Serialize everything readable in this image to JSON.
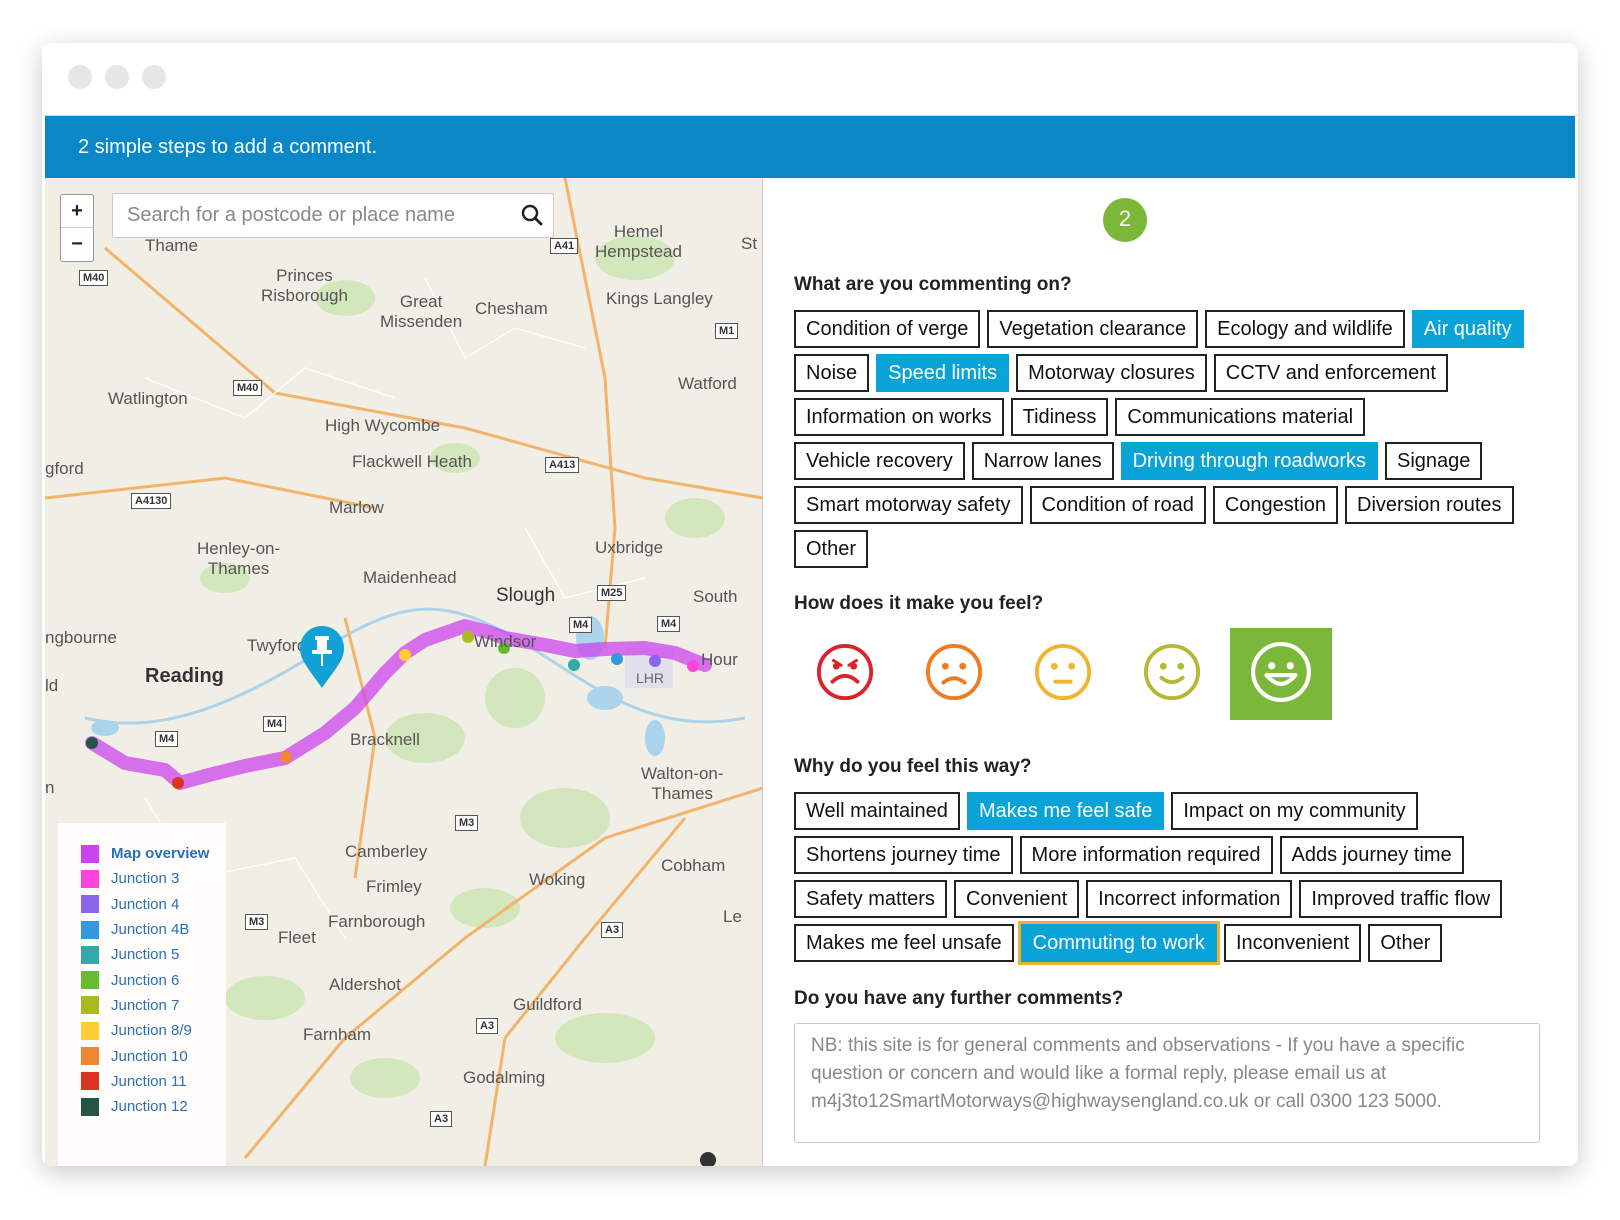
{
  "banner": {
    "text": "2 simple steps to add a comment."
  },
  "map": {
    "zoom_in": "+",
    "zoom_out": "−",
    "search_placeholder": "Search for a postcode or place name",
    "places": {
      "thame": "Thame",
      "princes_risborough": "Princes\nRisborough",
      "great_missenden": "Great\nMissenden",
      "chesham": "Chesham",
      "hemel_hempstead": "Hemel\nHempstead",
      "st": "St",
      "kings_langley": "Kings Langley",
      "watlington": "Watlington",
      "watford": "Watford",
      "high_wycombe": "High Wycombe",
      "flackwell_heath": "Flackwell Heath",
      "gford": "gford",
      "marlow": "Marlow",
      "henley": "Henley-on-\nThames",
      "uxbridge": "Uxbridge",
      "maidenhead": "Maidenhead",
      "slough": "Slough",
      "south": "South",
      "windsor": "Windsor",
      "twyford": "Twyford",
      "hour": "Hour",
      "lhr": "LHR",
      "ngbourne": "ngbourne",
      "reading": "Reading",
      "ld": "ld",
      "bracknell": "Bracknell",
      "walton": "Walton-on-\nThames",
      "camberley": "Camberley",
      "cobham": "Cobham",
      "frimley": "Frimley",
      "woking": "Woking",
      "farnborough": "Farnborough",
      "fleet": "Fleet",
      "le": "Le",
      "aldershot": "Aldershot",
      "guildford": "Guildford",
      "farnham": "Farnham",
      "godalming": "Godalming",
      "n": "n"
    },
    "roads": {
      "a41": "A41",
      "m40a": "M40",
      "m40b": "M40",
      "m1": "M1",
      "a413": "A413",
      "a4130": "A4130",
      "m25": "M25",
      "m4a": "M4",
      "m4b": "M4",
      "m4c": "M4",
      "m4d": "M4",
      "m3a": "M3",
      "m3b": "M3",
      "a3a": "A3",
      "a3b": "A3",
      "a3c": "A3"
    },
    "legend": [
      {
        "label": "Map overview",
        "color": "#cc44ee"
      },
      {
        "label": "Junction 3",
        "color": "#ff44dd"
      },
      {
        "label": "Junction 4",
        "color": "#8866ee"
      },
      {
        "label": "Junction 4B",
        "color": "#3399dd"
      },
      {
        "label": "Junction 5",
        "color": "#33aaaa"
      },
      {
        "label": "Junction 6",
        "color": "#66bb33"
      },
      {
        "label": "Junction 7",
        "color": "#aabb22"
      },
      {
        "label": "Junction 8/9",
        "color": "#ffcc33"
      },
      {
        "label": "Junction 10",
        "color": "#ee8833"
      },
      {
        "label": "Junction 11",
        "color": "#dd3322"
      },
      {
        "label": "Junction 12",
        "color": "#225544"
      }
    ]
  },
  "panel": {
    "step_number": "2",
    "q1": "What are you commenting on?",
    "topics": [
      [
        "Condition of verge",
        "Vegetation clearance",
        "Ecology and wildlife",
        "Air quality"
      ],
      [
        "Noise",
        "Speed limits",
        "Motorway closures",
        "CCTV and enforcement"
      ],
      [
        "Information on works",
        "Tidiness",
        "Communications material"
      ],
      [
        "Vehicle recovery",
        "Narrow lanes",
        "Driving through roadworks",
        "Signage"
      ],
      [
        "Smart motorway safety",
        "Condition of road",
        "Congestion",
        "Diversion routes"
      ],
      [
        "Other"
      ]
    ],
    "topics_selected": [
      "Air quality",
      "Speed limits",
      "Driving through roadworks"
    ],
    "q2": "How does it make you feel?",
    "faces": [
      {
        "icon": "very-unhappy-face-icon",
        "color": "#d9242b"
      },
      {
        "icon": "unhappy-face-icon",
        "color": "#ef7c22"
      },
      {
        "icon": "neutral-face-icon",
        "color": "#f0b430"
      },
      {
        "icon": "happy-face-icon",
        "color": "#b4b832"
      },
      {
        "icon": "very-happy-face-icon",
        "color": "#ffffff",
        "selected": true
      }
    ],
    "q3": "Why do you feel this way?",
    "reasons": [
      [
        "Well maintained",
        "Makes me feel safe",
        "Impact on my community"
      ],
      [
        "Shortens journey time",
        "More information required",
        "Adds journey time"
      ],
      [
        "Safety matters",
        "Convenient",
        "Incorrect information",
        "Improved traffic flow"
      ],
      [
        "Makes me feel unsafe",
        "Commuting to work",
        "Inconvenient",
        "Other"
      ]
    ],
    "reasons_selected": [
      "Makes me feel safe",
      "Commuting to work"
    ],
    "reasons_focused": "Commuting to work",
    "q4": "Do you have any further comments?",
    "comments_placeholder": "NB: this site is for general comments and observations - If you have a specific question or concern and would like a formal reply, please email us at m4j3to12SmartMotorways@highwaysengland.co.uk or call 0300 123 5000."
  }
}
